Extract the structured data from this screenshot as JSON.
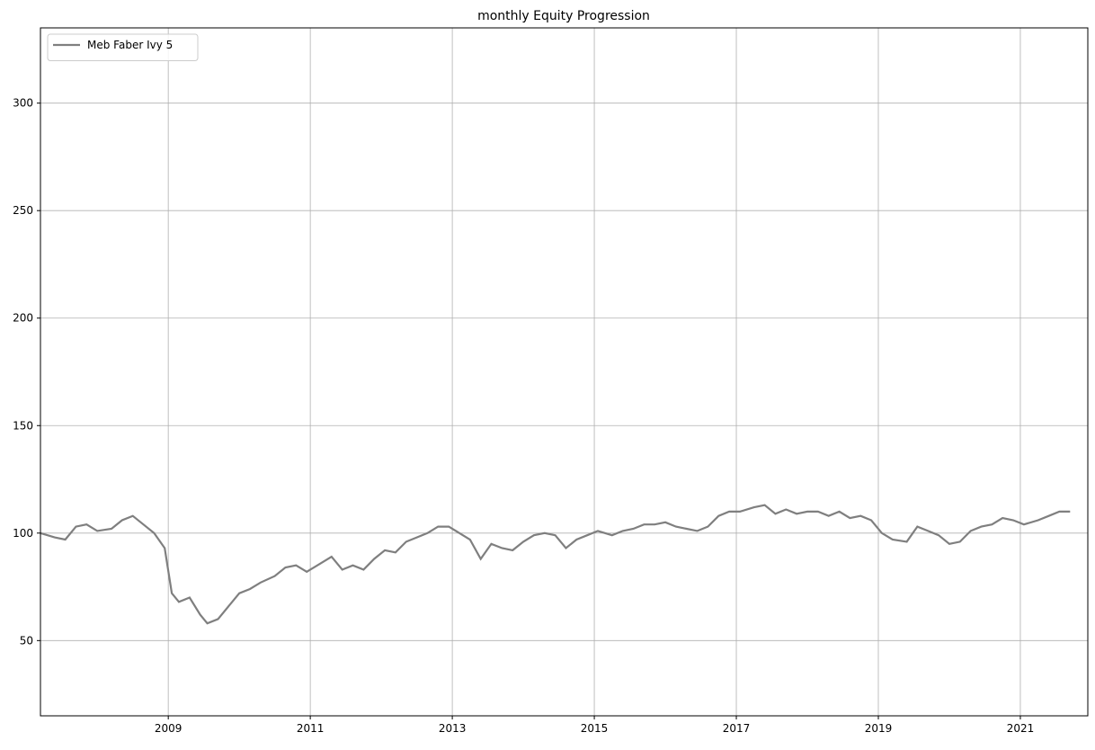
{
  "chart_data": {
    "type": "line",
    "title": "monthly Equity Progression",
    "xlabel": "",
    "ylabel": "",
    "xlim": [
      2007.2,
      2021.95
    ],
    "ylim": [
      15,
      335
    ],
    "x_ticks": [
      2009,
      2011,
      2013,
      2015,
      2017,
      2019,
      2021
    ],
    "y_ticks": [
      50,
      100,
      150,
      200,
      250,
      300
    ],
    "grid": true,
    "legend_position": "top-left",
    "series": [
      {
        "name": "Meb Faber Ivy 5",
        "color": "#7f7f7f",
        "style": "solid",
        "points": [
          [
            2007.2,
            100
          ],
          [
            2007.4,
            98
          ],
          [
            2007.55,
            97
          ],
          [
            2007.7,
            103
          ],
          [
            2007.85,
            104
          ],
          [
            2008.0,
            101
          ],
          [
            2008.2,
            102
          ],
          [
            2008.35,
            106
          ],
          [
            2008.5,
            108
          ],
          [
            2008.65,
            104
          ],
          [
            2008.8,
            100
          ],
          [
            2008.95,
            93
          ],
          [
            2009.05,
            72
          ],
          [
            2009.15,
            68
          ],
          [
            2009.3,
            70
          ],
          [
            2009.45,
            62
          ],
          [
            2009.55,
            58
          ],
          [
            2009.7,
            60
          ],
          [
            2009.85,
            66
          ],
          [
            2010.0,
            72
          ],
          [
            2010.15,
            74
          ],
          [
            2010.3,
            77
          ],
          [
            2010.5,
            80
          ],
          [
            2010.65,
            84
          ],
          [
            2010.8,
            85
          ],
          [
            2010.95,
            82
          ],
          [
            2011.1,
            85
          ],
          [
            2011.3,
            89
          ],
          [
            2011.45,
            83
          ],
          [
            2011.6,
            85
          ],
          [
            2011.75,
            83
          ],
          [
            2011.9,
            88
          ],
          [
            2012.05,
            92
          ],
          [
            2012.2,
            91
          ],
          [
            2012.35,
            96
          ],
          [
            2012.5,
            98
          ],
          [
            2012.65,
            100
          ],
          [
            2012.8,
            103
          ],
          [
            2012.95,
            103
          ],
          [
            2013.1,
            100
          ],
          [
            2013.25,
            97
          ],
          [
            2013.4,
            88
          ],
          [
            2013.55,
            95
          ],
          [
            2013.7,
            93
          ],
          [
            2013.85,
            92
          ],
          [
            2014.0,
            96
          ],
          [
            2014.15,
            99
          ],
          [
            2014.3,
            100
          ],
          [
            2014.45,
            99
          ],
          [
            2014.6,
            93
          ],
          [
            2014.75,
            97
          ],
          [
            2014.9,
            99
          ],
          [
            2015.05,
            101
          ],
          [
            2015.25,
            99
          ],
          [
            2015.4,
            101
          ],
          [
            2015.55,
            102
          ],
          [
            2015.7,
            104
          ],
          [
            2015.85,
            104
          ],
          [
            2016.0,
            105
          ],
          [
            2016.15,
            103
          ],
          [
            2016.3,
            102
          ],
          [
            2016.45,
            101
          ],
          [
            2016.6,
            103
          ],
          [
            2016.75,
            108
          ],
          [
            2016.9,
            110
          ],
          [
            2017.05,
            110
          ],
          [
            2017.25,
            112
          ],
          [
            2017.4,
            113
          ],
          [
            2017.55,
            109
          ],
          [
            2017.7,
            111
          ],
          [
            2017.85,
            109
          ],
          [
            2018.0,
            110
          ],
          [
            2018.15,
            110
          ],
          [
            2018.3,
            108
          ],
          [
            2018.45,
            110
          ],
          [
            2018.6,
            107
          ],
          [
            2018.75,
            108
          ],
          [
            2018.9,
            106
          ],
          [
            2019.05,
            100
          ],
          [
            2019.2,
            97
          ],
          [
            2019.4,
            96
          ],
          [
            2019.55,
            103
          ],
          [
            2019.7,
            101
          ],
          [
            2019.85,
            99
          ],
          [
            2020.0,
            95
          ],
          [
            2020.15,
            96
          ],
          [
            2020.3,
            101
          ],
          [
            2020.45,
            103
          ],
          [
            2020.6,
            104
          ],
          [
            2020.75,
            107
          ],
          [
            2020.9,
            106
          ],
          [
            2021.05,
            104
          ],
          [
            2021.25,
            106
          ],
          [
            2021.4,
            108
          ],
          [
            2021.55,
            110
          ],
          [
            2021.7,
            110
          ]
        ],
        "_note_points_scaled": true
      }
    ]
  }
}
